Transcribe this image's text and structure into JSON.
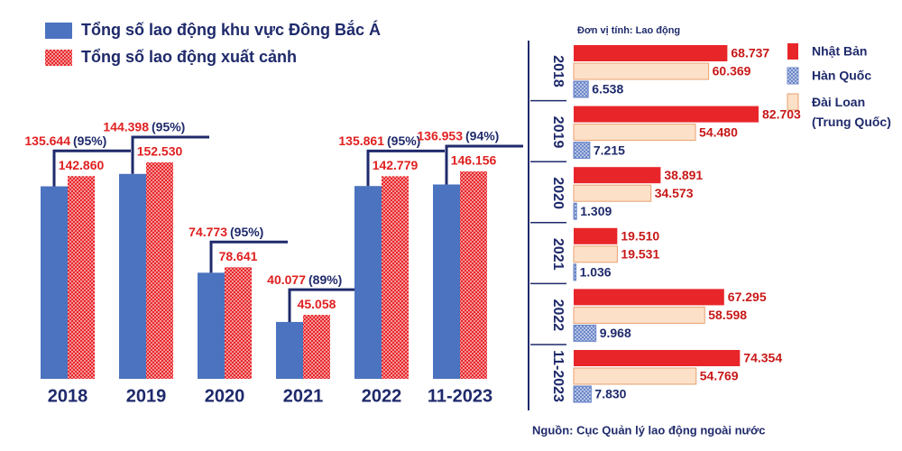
{
  "chart_data": [
    {
      "type": "bar",
      "categories": [
        "2018",
        "2019",
        "2020",
        "2021",
        "2022",
        "11-2023"
      ],
      "series": [
        {
          "name": "Tổng số lao động khu vực Đông Bắc Á",
          "color": "#4b73bf",
          "values": [
            135644,
            144398,
            74773,
            40077,
            135861,
            136953
          ],
          "value_labels": [
            "135.644",
            "144.398",
            "74.773",
            "40.077",
            "135.861",
            "136.953"
          ]
        },
        {
          "name": "Tổng số lao động xuất cảnh",
          "color": "#e8262a",
          "hatch": true,
          "values": [
            142860,
            152530,
            78641,
            45058,
            142779,
            146156
          ],
          "value_labels": [
            "142.860",
            "152.530",
            "78.641",
            "45.058",
            "142.779",
            "146.156"
          ]
        }
      ],
      "shares": [
        95,
        95,
        95,
        89,
        95,
        94
      ],
      "share_labels": [
        "(95%)",
        "(95%)",
        "(95%)",
        "(89%)",
        "(95%)",
        "(94%)"
      ]
    },
    {
      "type": "hbar",
      "unit": "Đơn vị tính: Lao động",
      "categories": [
        "2018",
        "2019",
        "2020",
        "2021",
        "2022",
        "11-2023"
      ],
      "series": [
        {
          "name": "Nhật Bản",
          "color": "#e8262a",
          "values": [
            68737,
            82703,
            38891,
            19510,
            67295,
            74354
          ],
          "value_labels": [
            "68.737",
            "82.703",
            "38.891",
            "19.510",
            "67.295",
            "74.354"
          ]
        },
        {
          "name": "Hàn Quốc",
          "color": "#6b86c8",
          "hatch": true,
          "values": [
            6538,
            7215,
            1309,
            1036,
            9968,
            7830
          ],
          "value_labels": [
            "6.538",
            "7.215",
            "1.309",
            "1.036",
            "9.968",
            "7.830"
          ]
        },
        {
          "name": "Đài Loan (Trung Quốc)",
          "color": "#fde0c8",
          "values": [
            60369,
            54480,
            34573,
            19531,
            58598,
            54769
          ],
          "value_labels": [
            "60.369",
            "54.480",
            "34.573",
            "19.531",
            "58.598",
            "54.769"
          ]
        }
      ]
    }
  ],
  "source": "Nguồn: Cục Quản lý lao động ngoài nước"
}
